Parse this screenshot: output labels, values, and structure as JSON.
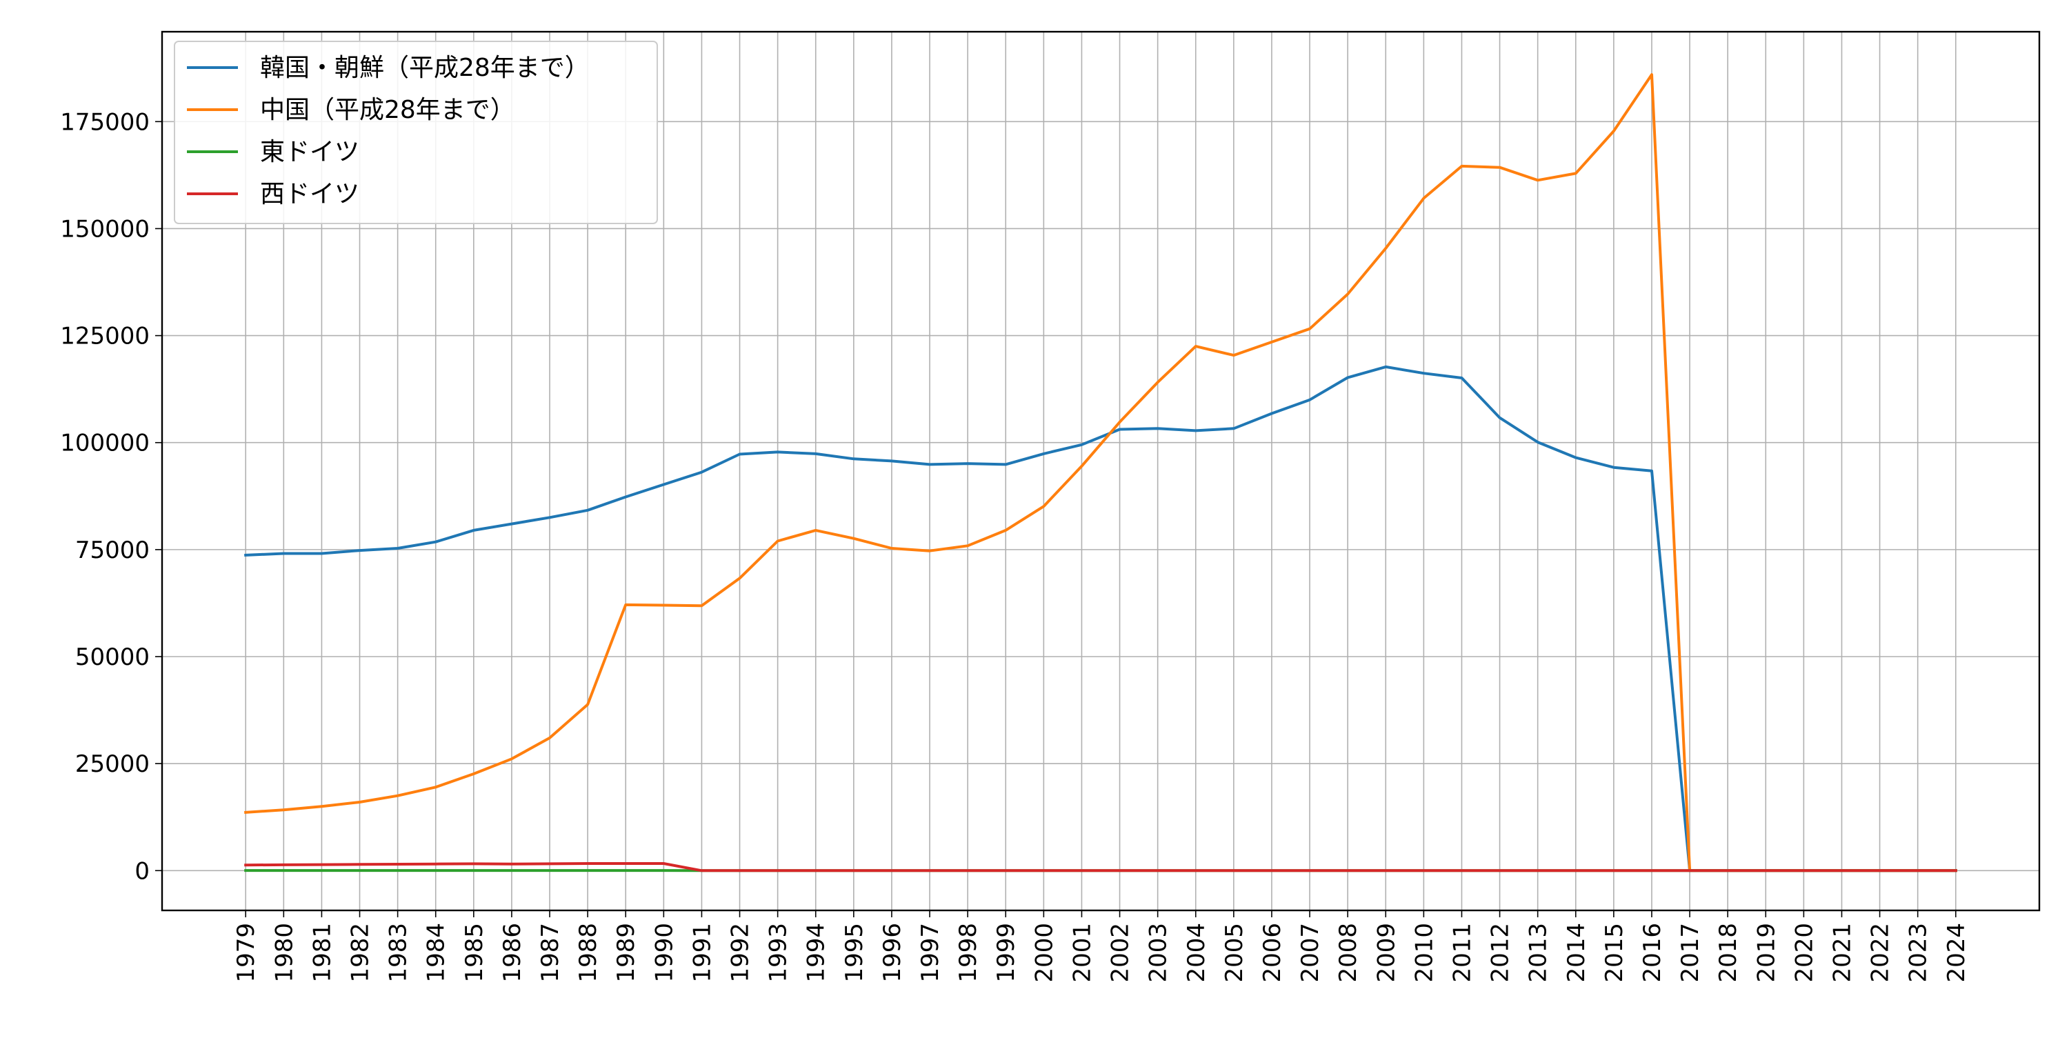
{
  "chart_data": {
    "type": "line",
    "title": "",
    "xlabel": "",
    "ylabel": "",
    "x": [
      1979,
      1980,
      1981,
      1982,
      1983,
      1984,
      1985,
      1986,
      1987,
      1988,
      1989,
      1990,
      1991,
      1992,
      1993,
      1994,
      1995,
      1996,
      1997,
      1998,
      1999,
      2000,
      2001,
      2002,
      2003,
      2004,
      2005,
      2006,
      2007,
      2008,
      2009,
      2010,
      2011,
      2012,
      2013,
      2014,
      2015,
      2016,
      2017,
      2018,
      2019,
      2020,
      2021,
      2022,
      2023,
      2024
    ],
    "ylim": [
      -9300,
      196000
    ],
    "yticks": [
      0,
      25000,
      50000,
      75000,
      100000,
      125000,
      150000,
      175000
    ],
    "grid": true,
    "legend_position": "top-left",
    "series": [
      {
        "name": "韓国・朝鮮（平成28年まで）",
        "color": "#1f77b4",
        "values": [
          73700,
          74100,
          74100,
          74800,
          75300,
          76800,
          79500,
          81000,
          82500,
          84200,
          87300,
          90200,
          93100,
          97300,
          97800,
          97400,
          96200,
          95700,
          94900,
          95100,
          94900,
          97400,
          99500,
          103100,
          103300,
          102800,
          103300,
          106800,
          110000,
          115200,
          117700,
          116200,
          115100,
          105800,
          100100,
          96500,
          94200,
          93400,
          0,
          0,
          0,
          0,
          0,
          0,
          0,
          0
        ]
      },
      {
        "name": "中国（平成28年まで）",
        "color": "#ff7f0e",
        "values": [
          13600,
          14200,
          15000,
          16000,
          17500,
          19500,
          22600,
          26100,
          31000,
          38800,
          62100,
          62000,
          61900,
          68300,
          77000,
          79500,
          77600,
          75300,
          74700,
          75900,
          79500,
          85100,
          94500,
          104800,
          114100,
          122500,
          120400,
          123500,
          126600,
          134700,
          145400,
          157100,
          164600,
          164300,
          161300,
          162900,
          172800,
          186000,
          0,
          0,
          0,
          0,
          0,
          0,
          0,
          0
        ]
      },
      {
        "name": "東ドイツ",
        "color": "#2ca02c",
        "values": [
          30,
          30,
          30,
          30,
          30,
          30,
          30,
          30,
          30,
          30,
          30,
          30,
          0,
          0,
          0,
          0,
          0,
          0,
          0,
          0,
          0,
          0,
          0,
          0,
          0,
          0,
          0,
          0,
          0,
          0,
          0,
          0,
          0,
          0,
          0,
          0,
          0,
          0,
          0,
          0,
          0,
          0,
          0,
          0,
          0,
          0
        ]
      },
      {
        "name": "西ドイツ",
        "color": "#d62728",
        "values": [
          1300,
          1350,
          1400,
          1450,
          1500,
          1550,
          1600,
          1550,
          1600,
          1650,
          1650,
          1650,
          0,
          0,
          0,
          0,
          0,
          0,
          0,
          0,
          0,
          0,
          0,
          0,
          0,
          0,
          0,
          0,
          0,
          0,
          0,
          0,
          0,
          0,
          0,
          0,
          0,
          0,
          0,
          0,
          0,
          0,
          0,
          0,
          0,
          0
        ]
      }
    ]
  }
}
